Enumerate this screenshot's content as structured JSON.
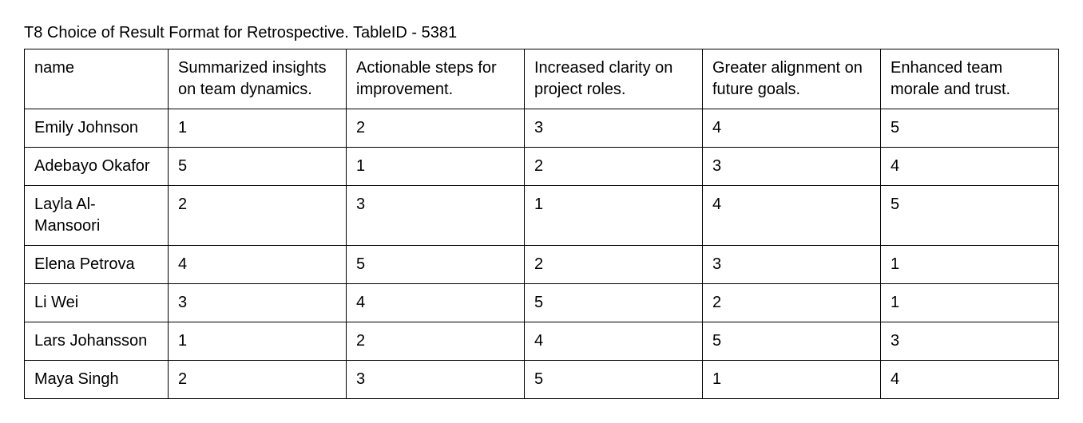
{
  "title": "T8 Choice of Result Format for Retrospective. TableID - 5381",
  "table": {
    "columns": [
      "name",
      "Summarized insights on team dynamics.",
      "Actionable steps for improvement.",
      "Increased clarity on project roles.",
      "Greater alignment on future goals.",
      "Enhanced team morale and trust."
    ],
    "rows": [
      [
        "Emily Johnson",
        "1",
        "2",
        "3",
        "4",
        "5"
      ],
      [
        "Adebayo Okafor",
        "5",
        "1",
        "2",
        "3",
        "4"
      ],
      [
        "Layla Al-Mansoori",
        "2",
        "3",
        "1",
        "4",
        "5"
      ],
      [
        "Elena Petrova",
        "4",
        "5",
        "2",
        "3",
        "1"
      ],
      [
        "Li Wei",
        "3",
        "4",
        "5",
        "2",
        "1"
      ],
      [
        "Lars Johansson",
        "1",
        "2",
        "4",
        "5",
        "3"
      ],
      [
        "Maya Singh",
        "2",
        "3",
        "5",
        "1",
        "4"
      ]
    ]
  }
}
